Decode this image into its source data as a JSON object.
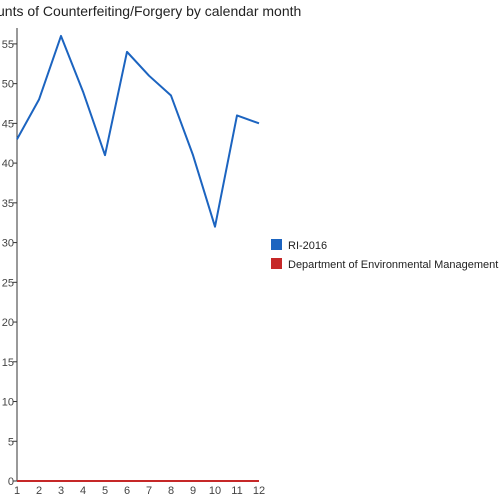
{
  "chart_data": {
    "type": "line",
    "title": "unts of Counterfeiting/Forgery by calendar month",
    "x": [
      1,
      2,
      3,
      4,
      5,
      6,
      7,
      8,
      9,
      10,
      11,
      12
    ],
    "ylim": [
      0,
      57
    ],
    "y_ticks": [
      0,
      5,
      10,
      15,
      20,
      25,
      30,
      35,
      40,
      45,
      50,
      55
    ],
    "grid": false,
    "legend_position": "right",
    "series": [
      {
        "name": "RI-2016",
        "color": "#1c64c0",
        "values": [
          43,
          48,
          56,
          49,
          41,
          54,
          51,
          48.5,
          41,
          32,
          46,
          45
        ]
      },
      {
        "name": "Department of Environmental Management",
        "color": "#c62828",
        "values": [
          0,
          0,
          0,
          0,
          0,
          0,
          0,
          0,
          0,
          0,
          0,
          0
        ]
      }
    ]
  }
}
